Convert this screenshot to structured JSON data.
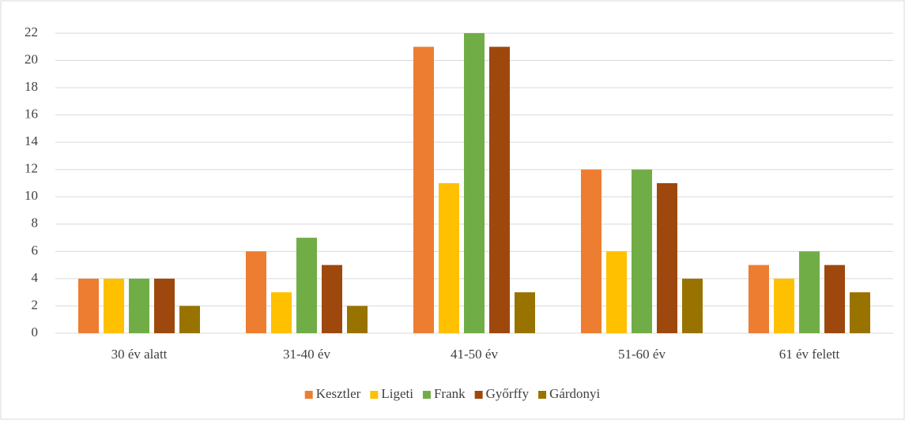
{
  "chart_data": {
    "type": "bar",
    "categories": [
      "30 év alatt",
      "31-40 év",
      "41-50 év",
      "51-60 év",
      "61 év felett"
    ],
    "series": [
      {
        "name": "Kesztler",
        "color": "#ED7D31",
        "values": [
          4,
          6,
          21,
          12,
          5
        ]
      },
      {
        "name": "Ligeti",
        "color": "#FFC000",
        "values": [
          4,
          3,
          11,
          6,
          4
        ]
      },
      {
        "name": "Frank",
        "color": "#70AD47",
        "values": [
          4,
          7,
          22,
          12,
          6
        ]
      },
      {
        "name": "Győrffy",
        "color": "#9E480E",
        "values": [
          4,
          5,
          21,
          11,
          5
        ]
      },
      {
        "name": "Gárdonyi",
        "color": "#997300",
        "values": [
          2,
          2,
          3,
          4,
          3
        ]
      }
    ],
    "ylim": [
      0,
      22
    ],
    "yticks": [
      0,
      2,
      4,
      6,
      8,
      10,
      12,
      14,
      16,
      18,
      20,
      22
    ],
    "grid": true,
    "legend": "bottom"
  }
}
